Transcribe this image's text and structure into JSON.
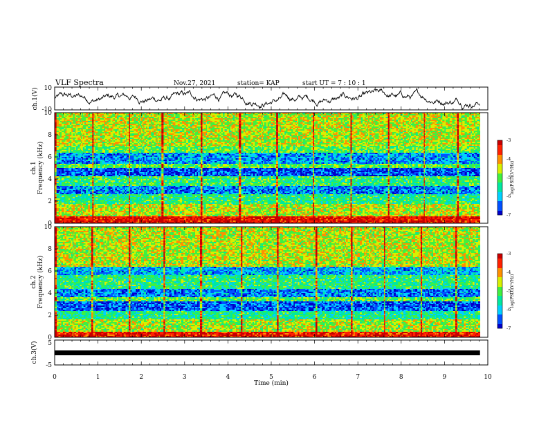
{
  "header": {
    "title": "VLF Spectra",
    "date": "Nov.27, 2021",
    "station": "station= KAP",
    "start": "start  UT =   7 : 10 : 1"
  },
  "colors": {
    "spectrogram_scale": [
      "#0000c8",
      "#0050ff",
      "#00d0ff",
      "#00e8a0",
      "#40f040",
      "#d8f000",
      "#ff9000",
      "#ff2000",
      "#c80000"
    ],
    "trace": "#000000"
  },
  "chart_data": [
    {
      "type": "line",
      "name": "ch1-waveform",
      "ylabel": "ch.1(V)",
      "ylim": [
        -10,
        10
      ],
      "yticks": [
        "10",
        "-10"
      ],
      "xlim": [
        0,
        10
      ],
      "x_end": 9.82,
      "approx_values": {
        "mean": 0.5,
        "range": [
          -9.5,
          9.5
        ]
      }
    },
    {
      "type": "heatmap",
      "name": "ch1-spectrogram",
      "ylabel": "ch.1\nFrequency (kHz)",
      "ylim": [
        0,
        10
      ],
      "yticks": [
        "0",
        "2",
        "4",
        "6",
        "8",
        "10"
      ],
      "xlim": [
        0,
        10
      ],
      "x_end": 9.82,
      "color_range": [
        -7,
        -3
      ],
      "bands_khz": [
        {
          "from": 0.0,
          "to": 0.6,
          "level": -3.2
        },
        {
          "from": 0.6,
          "to": 1.8,
          "level": -4.6
        },
        {
          "from": 1.8,
          "to": 2.6,
          "level": -5.3
        },
        {
          "from": 2.6,
          "to": 3.4,
          "level": -6.3
        },
        {
          "from": 3.4,
          "to": 4.2,
          "level": -5.2
        },
        {
          "from": 4.2,
          "to": 5.0,
          "level": -6.6
        },
        {
          "from": 5.0,
          "to": 5.4,
          "level": -5.0
        },
        {
          "from": 5.4,
          "to": 6.4,
          "level": -6.2
        },
        {
          "from": 6.4,
          "to": 7.0,
          "level": -5.0
        },
        {
          "from": 7.0,
          "to": 10.0,
          "level": -4.6
        }
      ],
      "colorbar": {
        "ticks": [
          "-3",
          "-4",
          "-5",
          "-6",
          "-7"
        ],
        "label": "log(PSD)(V²/Hz)"
      }
    },
    {
      "type": "heatmap",
      "name": "ch2-spectrogram",
      "ylabel": "ch.2\nFrequency (kHz)",
      "ylim": [
        0,
        10
      ],
      "yticks": [
        "0",
        "2",
        "4",
        "6",
        "8",
        "10"
      ],
      "xlim": [
        0,
        10
      ],
      "x_end": 9.82,
      "color_range": [
        -7,
        -3
      ],
      "bands_khz": [
        {
          "from": 0.0,
          "to": 0.5,
          "level": -3.3
        },
        {
          "from": 0.5,
          "to": 1.6,
          "level": -4.7
        },
        {
          "from": 1.6,
          "to": 2.4,
          "level": -5.4
        },
        {
          "from": 2.4,
          "to": 3.2,
          "level": -6.5
        },
        {
          "from": 3.2,
          "to": 3.6,
          "level": -5.0
        },
        {
          "from": 3.6,
          "to": 4.4,
          "level": -6.3
        },
        {
          "from": 4.4,
          "to": 5.6,
          "level": -5.3
        },
        {
          "from": 5.6,
          "to": 6.4,
          "level": -6.1
        },
        {
          "from": 6.4,
          "to": 10.0,
          "level": -4.6
        }
      ],
      "colorbar": {
        "ticks": [
          "-3",
          "-4",
          "-5",
          "-6",
          "-7"
        ],
        "label": "log(PSD)(V²/Hz)"
      }
    },
    {
      "type": "line",
      "name": "ch3-trace",
      "ylabel": "ch.3(V)",
      "ylim": [
        -5,
        5
      ],
      "yticks": [
        "5",
        "0",
        "-5"
      ],
      "xlim": [
        0,
        10
      ],
      "x_end": 9.82,
      "values": {
        "constant": 0.0
      },
      "xlabel": "Time (min)",
      "xticks": [
        "0",
        "1",
        "2",
        "3",
        "4",
        "5",
        "6",
        "7",
        "8",
        "9",
        "10"
      ]
    }
  ]
}
